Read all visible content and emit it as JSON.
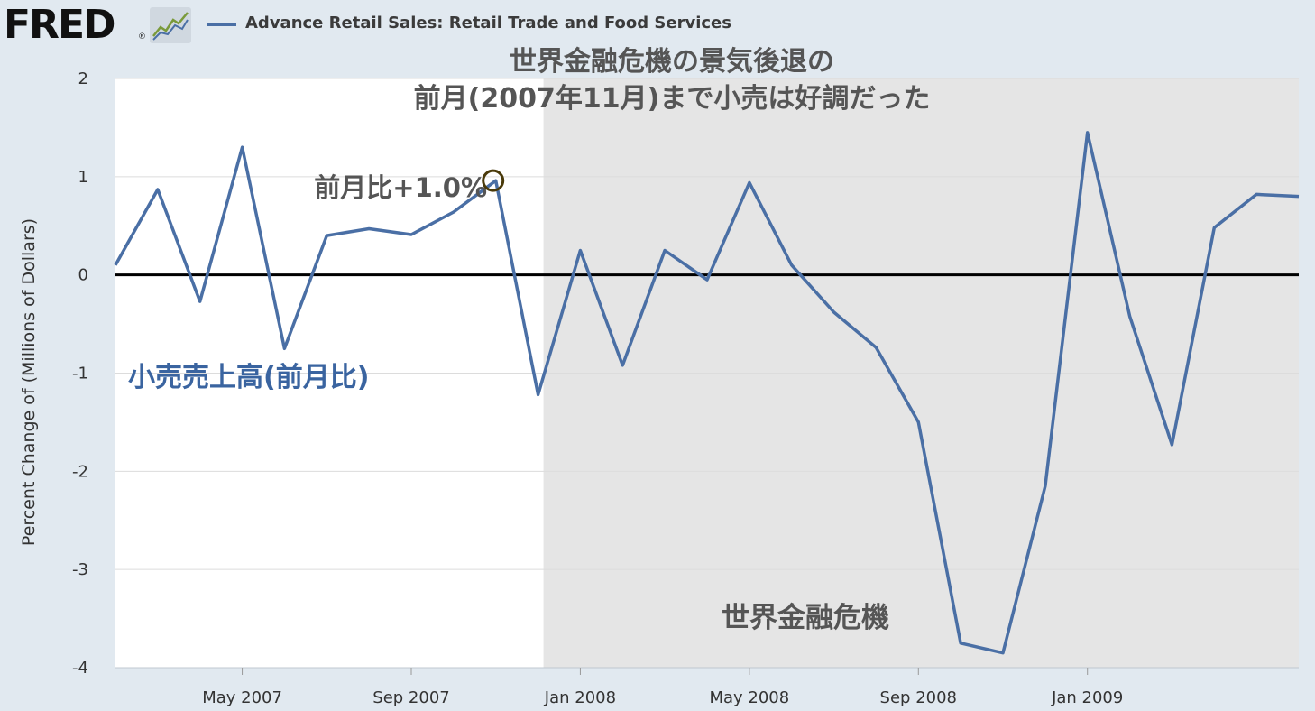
{
  "header": {
    "logo_text": "FRED",
    "logo_reg": "®",
    "legend_label": "Advance Retail Sales: Retail Trade and Food Services",
    "logo_icon": "line-graph-icon"
  },
  "colors": {
    "background": "#e1e9f0",
    "plot_area": "#ffffff",
    "recession_shading": "#e5e5e5",
    "series_line": "#4a6fa5",
    "zero_line": "#000000",
    "highlight_circle": "#4a3a0a",
    "annotation_gray": "#555555",
    "annotation_blue": "#3a64a0"
  },
  "chart_data": {
    "type": "line",
    "title": "",
    "xlabel": "",
    "ylabel": "Percent Change of (Millions of Dollars)",
    "ylim": [
      -4,
      2
    ],
    "yticks": [
      2,
      1,
      0,
      -1,
      -2,
      -3,
      -4
    ],
    "ytick_labels": [
      "2",
      "1",
      "0",
      "-1",
      "-2",
      "-3",
      "-4"
    ],
    "xticks": [
      {
        "date": "2007-05",
        "label": "May 2007"
      },
      {
        "date": "2007-09",
        "label": "Sep 2007"
      },
      {
        "date": "2008-01",
        "label": "Jan 2008"
      },
      {
        "date": "2008-05",
        "label": "May 2008"
      },
      {
        "date": "2008-09",
        "label": "Sep 2008"
      },
      {
        "date": "2009-01",
        "label": "Jan 2009"
      }
    ],
    "x_range": [
      "2007-02",
      "2009-06"
    ],
    "recession": {
      "start": "2007-12",
      "end": "2009-06",
      "label": "世界金融危機"
    },
    "zero_line": 0,
    "series": [
      {
        "name": "Advance Retail Sales: Retail Trade and Food Services",
        "x": [
          "2007-02",
          "2007-03",
          "2007-04",
          "2007-05",
          "2007-06",
          "2007-07",
          "2007-08",
          "2007-09",
          "2007-10",
          "2007-11",
          "2007-12",
          "2008-01",
          "2008-02",
          "2008-03",
          "2008-04",
          "2008-05",
          "2008-06",
          "2008-07",
          "2008-08",
          "2008-09",
          "2008-10",
          "2008-11",
          "2008-12",
          "2009-01",
          "2009-02",
          "2009-03",
          "2009-04",
          "2009-05",
          "2009-06"
        ],
        "values": [
          0.1,
          0.87,
          -0.27,
          1.3,
          -0.75,
          0.4,
          0.47,
          0.41,
          0.64,
          0.96,
          -1.22,
          0.25,
          -0.92,
          0.25,
          -0.05,
          0.94,
          0.1,
          -0.38,
          -0.74,
          -1.5,
          -3.75,
          -3.85,
          -2.15,
          1.45,
          -0.42,
          -1.73,
          0.48,
          0.82,
          0.8
        ]
      }
    ],
    "annotations": {
      "title_line1": "世界金融危機の景気後退の",
      "title_line2": "前月(2007年11月)まで小売は好調だった",
      "peak_label": "前月比+1.0%",
      "series_label": "小売売上高(前月比)",
      "highlight_point": "2007-11"
    }
  }
}
